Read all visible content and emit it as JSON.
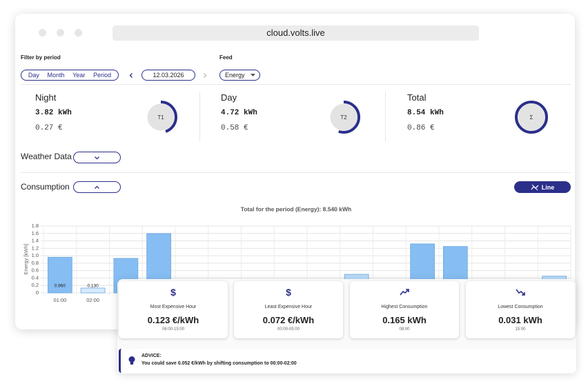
{
  "browser": {
    "url": "cloud.volts.live"
  },
  "filters": {
    "period_label": "Filter by period",
    "period_options": [
      "Day",
      "Month",
      "Year",
      "Period"
    ],
    "date": "12.03.2026",
    "feed_label": "Feed",
    "feed_value": "Energy"
  },
  "stats": [
    {
      "label": "Night",
      "energy": 3.82,
      "energy_unit": "kWh",
      "cost": "0.27 €",
      "badge": "T1"
    },
    {
      "label": "Day",
      "energy": 4.72,
      "energy_unit": "kWh",
      "cost": "0.58 €",
      "badge": "T2"
    },
    {
      "label": "Total",
      "energy": 8.54,
      "energy_unit": "kWh",
      "cost": "0.86 €",
      "badge": "Σ"
    }
  ],
  "sections": {
    "weather": "Weather Data",
    "consumption": "Consumption",
    "line_button": "Line"
  },
  "chart_data": {
    "type": "bar",
    "title": "Total for the period (Energy): 8.540 kWh",
    "y_label": "Energy [kWh]",
    "categories": [
      "01:00",
      "02:00",
      null,
      null,
      null,
      null,
      null,
      null,
      null,
      null,
      null,
      null,
      null,
      null,
      null,
      null
    ],
    "values": [
      0.96,
      0.13,
      0.93,
      1.6,
      null,
      null,
      null,
      null,
      null,
      0.5,
      null,
      1.32,
      1.25,
      null,
      null,
      0.45
    ],
    "value_labels": [
      "0.960",
      "0.130",
      null,
      null,
      null,
      null,
      null,
      null,
      null,
      null,
      null,
      null,
      null,
      null,
      null,
      null
    ],
    "colors": [
      "#86bdf2",
      "#d8ebfc",
      "#86bdf2",
      "#86bdf2",
      "#86bdf2",
      "#86bdf2",
      "#86bdf2",
      "#86bdf2",
      "#86bdf2",
      "#b9dbf8",
      "#86bdf2",
      "#86bdf2",
      "#86bdf2",
      "#86bdf2",
      "#86bdf2",
      "#b9dbf8"
    ],
    "ylim": [
      0,
      1.8
    ],
    "yticks": [
      0,
      0.2,
      0.4,
      0.6,
      0.8,
      {
        "value": 1,
        "label": "1.0"
      },
      1.2,
      1.4,
      1.6,
      1.8
    ],
    "grid": true
  },
  "insights": [
    {
      "icon": "$",
      "label": "Most Expensive Hour",
      "value": "0.123 €/kWh",
      "sub": "06:00-15:00"
    },
    {
      "icon": "$",
      "label": "Least Expensive Hour",
      "value": "0.072 €/kWh",
      "sub": "00:00-05:00"
    },
    {
      "label": "Highest Consumption",
      "value": "0.165 kWh",
      "sub": "08:00"
    },
    {
      "label": "Lowest Consumption",
      "value": "0.031 kWh",
      "sub": "15:00"
    }
  ],
  "advice": {
    "title": "ADVICE:",
    "text": "You could save 0.052 €/kWh by shifting consumption to 00:00-02:00"
  }
}
